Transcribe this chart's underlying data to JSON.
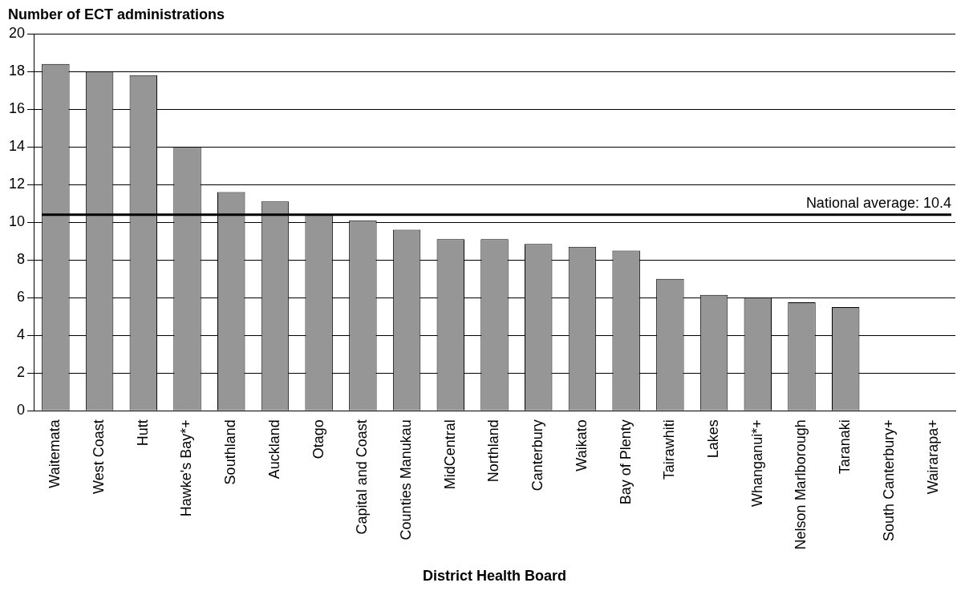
{
  "chart_data": {
    "type": "bar",
    "ylabel": "Number of ECT administrations",
    "xlabel": "District Health Board",
    "categories": [
      "Waitemata",
      "West Coast",
      "Hutt",
      "Hawke's Bay*+",
      "Southland",
      "Auckland",
      "Otago",
      "Capital and Coast",
      "Counties Manukau",
      "MidCentral",
      "Northland",
      "Canterbury",
      "Waikato",
      "Bay of Plenty",
      "Tairawhiti",
      "Lakes",
      "Whanganui*+",
      "Nelson Marlborough",
      "Taranaki",
      "South Canterbury+",
      "Wairarapa+"
    ],
    "values": [
      18.4,
      18.0,
      17.8,
      14.0,
      11.6,
      11.1,
      10.4,
      10.1,
      9.6,
      9.1,
      9.1,
      8.85,
      8.7,
      8.5,
      7.0,
      6.15,
      6.0,
      5.75,
      5.5,
      null,
      null
    ],
    "color": "#969696",
    "ylim": [
      0,
      20
    ],
    "yticks": [
      0,
      2,
      4,
      6,
      8,
      10,
      12,
      14,
      16,
      18,
      20
    ],
    "grid": "y",
    "legend": false,
    "ref_lines": [
      {
        "axis": "y",
        "value": 10.4,
        "label": "National average: 10.4",
        "color": "#000000"
      }
    ]
  }
}
